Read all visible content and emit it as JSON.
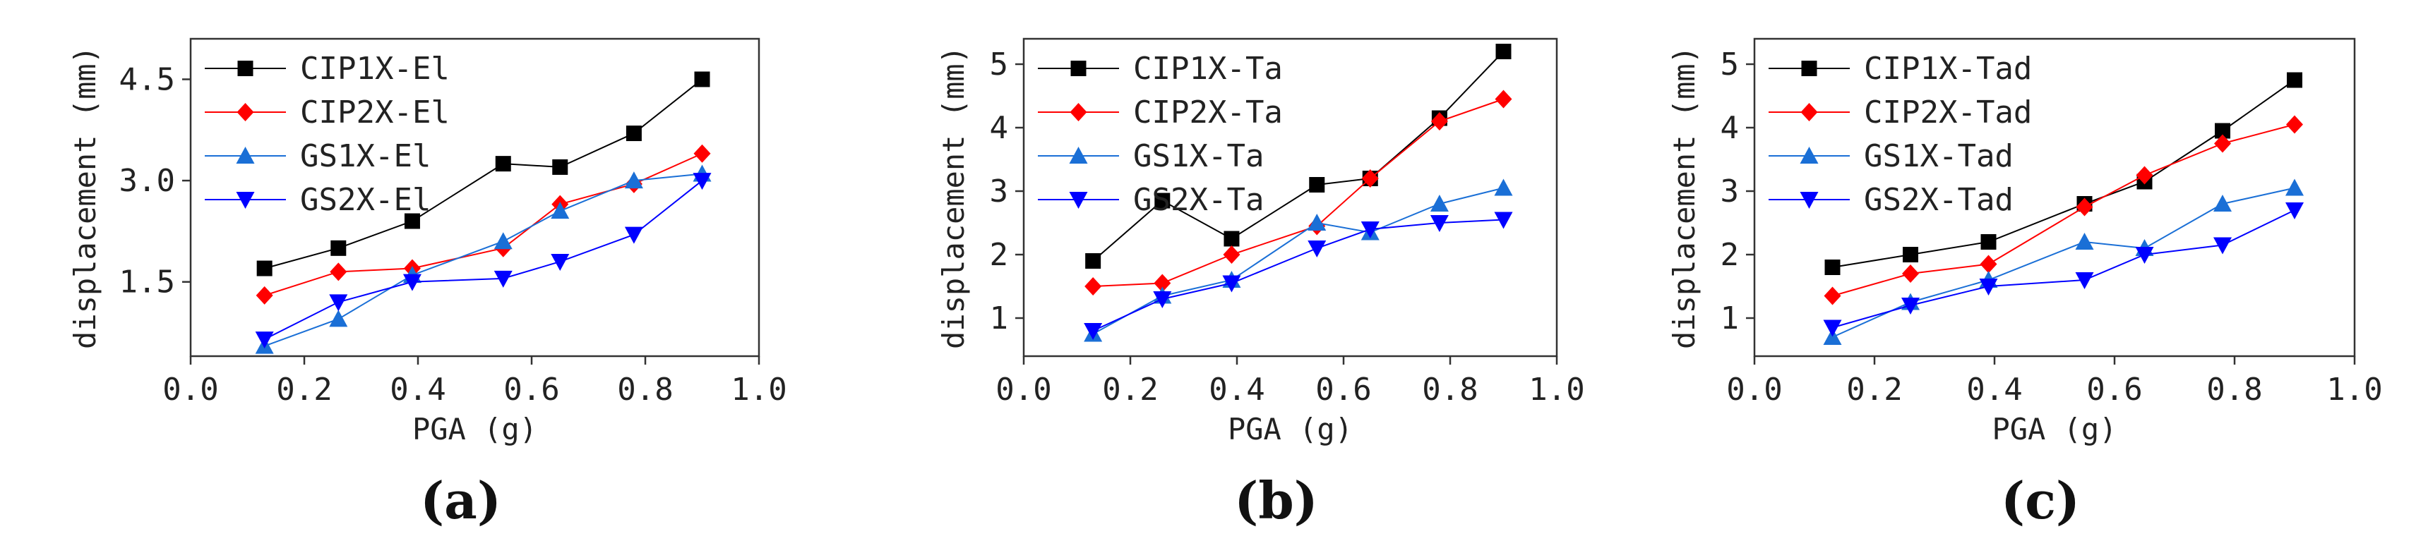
{
  "chart_data": [
    {
      "type": "line",
      "caption": "(a)",
      "caption_letter": "a",
      "xlabel": "PGA (g)",
      "ylabel": "displacement (mm)",
      "xlim": [
        0.0,
        1.0
      ],
      "ylim": [
        0.4,
        5.1
      ],
      "xticks": [
        0.0,
        0.2,
        0.4,
        0.6,
        0.8,
        1.0
      ],
      "xtick_labels": [
        "0.0",
        "0.2",
        "0.4",
        "0.6",
        "0.8",
        "1.0"
      ],
      "yticks": [
        1.5,
        3.0,
        4.5
      ],
      "ytick_labels": [
        "1.5",
        "3.0",
        "4.5"
      ],
      "legend_position": "top-left",
      "x": [
        0.13,
        0.26,
        0.39,
        0.55,
        0.65,
        0.78,
        0.9
      ],
      "series": [
        {
          "name": "CIP1X-El",
          "color": "#000000",
          "marker": "square",
          "values": [
            1.7,
            2.0,
            2.4,
            3.25,
            3.2,
            3.7,
            4.5
          ]
        },
        {
          "name": "CIP2X-El",
          "color": "#ff0000",
          "marker": "diamond",
          "values": [
            1.3,
            1.65,
            1.7,
            2.0,
            2.65,
            2.95,
            3.4
          ]
        },
        {
          "name": "GS1X-El",
          "color": "#1a6fd6",
          "marker": "triangle-up",
          "values": [
            0.55,
            0.95,
            1.6,
            2.1,
            2.55,
            3.0,
            3.1
          ]
        },
        {
          "name": "GS2X-El",
          "color": "#0000ff",
          "marker": "triangle-down",
          "values": [
            0.65,
            1.2,
            1.5,
            1.55,
            1.8,
            2.2,
            3.0
          ]
        }
      ]
    },
    {
      "type": "line",
      "caption": "(b)",
      "caption_letter": "b",
      "xlabel": "PGA (g)",
      "ylabel": "displacement (mm)",
      "xlim": [
        0.0,
        1.0
      ],
      "ylim": [
        0.4,
        5.4
      ],
      "xticks": [
        0.0,
        0.2,
        0.4,
        0.6,
        0.8,
        1.0
      ],
      "xtick_labels": [
        "0.0",
        "0.2",
        "0.4",
        "0.6",
        "0.8",
        "1.0"
      ],
      "yticks": [
        1,
        2,
        3,
        4,
        5
      ],
      "ytick_labels": [
        "1",
        "2",
        "3",
        "4",
        "5"
      ],
      "legend_position": "top-left",
      "x": [
        0.13,
        0.26,
        0.39,
        0.55,
        0.65,
        0.78,
        0.9
      ],
      "series": [
        {
          "name": "CIP1X-Ta",
          "color": "#000000",
          "marker": "square",
          "values": [
            1.9,
            2.85,
            2.25,
            3.1,
            3.2,
            4.15,
            5.2
          ]
        },
        {
          "name": "CIP2X-Ta",
          "color": "#ff0000",
          "marker": "diamond",
          "values": [
            1.5,
            1.55,
            2.0,
            2.45,
            3.2,
            4.1,
            4.45
          ]
        },
        {
          "name": "GS1X-Ta",
          "color": "#1a6fd6",
          "marker": "triangle-up",
          "values": [
            0.75,
            1.35,
            1.6,
            2.5,
            2.35,
            2.8,
            3.05
          ]
        },
        {
          "name": "GS2X-Ta",
          "color": "#0000ff",
          "marker": "triangle-down",
          "values": [
            0.8,
            1.3,
            1.55,
            2.1,
            2.4,
            2.5,
            2.55
          ]
        }
      ]
    },
    {
      "type": "line",
      "caption": "(c)",
      "caption_letter": "c",
      "xlabel": "PGA (g)",
      "ylabel": "displacement (mm)",
      "xlim": [
        0.0,
        1.0
      ],
      "ylim": [
        0.4,
        5.4
      ],
      "xticks": [
        0.0,
        0.2,
        0.4,
        0.6,
        0.8,
        1.0
      ],
      "xtick_labels": [
        "0.0",
        "0.2",
        "0.4",
        "0.6",
        "0.8",
        "1.0"
      ],
      "yticks": [
        1,
        2,
        3,
        4,
        5
      ],
      "ytick_labels": [
        "1",
        "2",
        "3",
        "4",
        "5"
      ],
      "legend_position": "top-left",
      "x": [
        0.13,
        0.26,
        0.39,
        0.55,
        0.65,
        0.78,
        0.9
      ],
      "series": [
        {
          "name": "CIP1X-Tad",
          "color": "#000000",
          "marker": "square",
          "values": [
            1.8,
            2.0,
            2.2,
            2.8,
            3.15,
            3.95,
            4.75
          ]
        },
        {
          "name": "CIP2X-Tad",
          "color": "#ff0000",
          "marker": "diamond",
          "values": [
            1.35,
            1.7,
            1.85,
            2.75,
            3.25,
            3.75,
            4.05
          ]
        },
        {
          "name": "GS1X-Tad",
          "color": "#1a6fd6",
          "marker": "triangle-up",
          "values": [
            0.7,
            1.25,
            1.6,
            2.2,
            2.1,
            2.8,
            3.05
          ]
        },
        {
          "name": "GS2X-Tad",
          "color": "#0000ff",
          "marker": "triangle-down",
          "values": [
            0.85,
            1.2,
            1.5,
            1.6,
            2.0,
            2.15,
            2.7
          ]
        }
      ]
    }
  ]
}
